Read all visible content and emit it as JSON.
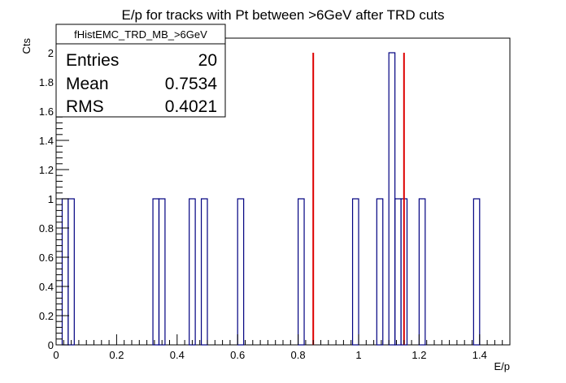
{
  "chart_data": {
    "type": "bar",
    "title": "E/p for tracks with Pt between >6GeV after TRD cuts",
    "xlabel": "E/p",
    "ylabel": "Cts",
    "xlim": [
      0,
      1.5
    ],
    "ylim": [
      0,
      2.1
    ],
    "bin_width": 0.02,
    "x_ticks": [
      0,
      0.2,
      0.4,
      0.6,
      0.8,
      1,
      1.2,
      1.4
    ],
    "x_tick_labels": [
      "0",
      "0.2",
      "0.4",
      "0.6",
      "0.8",
      "1",
      "1.2",
      "1.4"
    ],
    "y_ticks": [
      0,
      0.2,
      0.4,
      0.6,
      0.8,
      1,
      1.2,
      1.4,
      1.6,
      1.8,
      2
    ],
    "y_tick_labels": [
      "0",
      "0.2",
      "0.4",
      "0.6",
      "0.8",
      "1",
      "1.2",
      "1.4",
      "1.6",
      "1.8",
      "2"
    ],
    "bins": [
      {
        "x": 0.03,
        "value": 1
      },
      {
        "x": 0.05,
        "value": 1
      },
      {
        "x": 0.33,
        "value": 1
      },
      {
        "x": 0.35,
        "value": 1
      },
      {
        "x": 0.45,
        "value": 1
      },
      {
        "x": 0.49,
        "value": 1
      },
      {
        "x": 0.61,
        "value": 1
      },
      {
        "x": 0.81,
        "value": 1
      },
      {
        "x": 0.99,
        "value": 1
      },
      {
        "x": 1.07,
        "value": 1
      },
      {
        "x": 1.11,
        "value": 2
      },
      {
        "x": 1.13,
        "value": 1
      },
      {
        "x": 1.15,
        "value": 1
      },
      {
        "x": 1.21,
        "value": 1
      },
      {
        "x": 1.39,
        "value": 1
      }
    ],
    "cut_lines": [
      0.85,
      1.15
    ],
    "colors": {
      "histogram": "#000080",
      "cut_line": "#dd0000",
      "axis": "#000000"
    },
    "grid": false,
    "stats_box": {
      "name": "fHistEMC_TRD_MB_>6GeV",
      "rows": [
        {
          "label": "Entries",
          "value": "20"
        },
        {
          "label": "Mean",
          "value": "0.7534"
        },
        {
          "label": "RMS",
          "value": "0.4021"
        }
      ],
      "placement": "top-left"
    }
  }
}
